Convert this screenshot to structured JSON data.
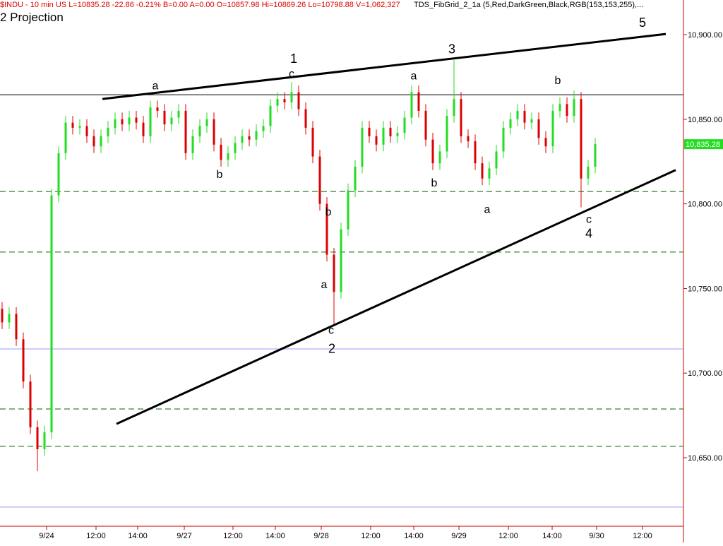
{
  "header": {
    "quote": "$INDU - 10 min  US  L=10835.28  -22.86  -0.21%  B=0.00  A=0.00  O=10857.98  Hi=10869.26  Lo=10798.88  V=1,062,327",
    "study": "TDS_FibGrid_2_1a (5,Red,DarkGreen,Black,RGB(153,153,255),..."
  },
  "chart_data": {
    "type": "candlestick",
    "title": "2 Projection",
    "up_color": "#22dd22",
    "down_color": "#dd0000",
    "axis_color": "#cc0000",
    "xlim": [
      -0.3,
      96.5
    ],
    "ylim": [
      10609.5,
      10920.5
    ],
    "xticks": [
      {
        "value": 6.3,
        "label": "9/24"
      },
      {
        "value": 13.3,
        "label": "12:00"
      },
      {
        "value": 19.2,
        "label": "14:00"
      },
      {
        "value": 25.8,
        "label": "9/27"
      },
      {
        "value": 32.7,
        "label": "12:00"
      },
      {
        "value": 38.7,
        "label": "14:00"
      },
      {
        "value": 45.2,
        "label": "9/28"
      },
      {
        "value": 52.2,
        "label": "12:00"
      },
      {
        "value": 58.3,
        "label": "14:00"
      },
      {
        "value": 64.7,
        "label": "9/29"
      },
      {
        "value": 71.7,
        "label": "12:00"
      },
      {
        "value": 77.9,
        "label": "14:00"
      },
      {
        "value": 84.2,
        "label": "9/30"
      },
      {
        "value": 90.7,
        "label": "12:00"
      }
    ],
    "yticks": [
      {
        "value": 10650,
        "label": "10,650.00"
      },
      {
        "value": 10700,
        "label": "10,700.00"
      },
      {
        "value": 10750,
        "label": "10,750.00"
      },
      {
        "value": 10800,
        "label": "10,800.00"
      },
      {
        "value": 10850,
        "label": "10,850.00"
      },
      {
        "value": 10900,
        "label": "10,900.00"
      }
    ],
    "last_price": {
      "value": 10835.28,
      "label": "10,835.28"
    },
    "open": [
      10738,
      10730,
      10735,
      10720,
      10695,
      10668,
      10655,
      10665,
      10805,
      10830,
      10848,
      10845,
      10846,
      10840,
      10834,
      10840,
      10845,
      10850,
      10847,
      10851,
      10848,
      10840,
      10857,
      10855,
      10847,
      10851,
      10855,
      10830,
      10840,
      10846,
      10850,
      10835,
      10826,
      10830,
      10836,
      10840,
      10838,
      10843,
      10846,
      10858,
      10862,
      10860,
      10866,
      10856,
      10845,
      10828,
      10800,
      10770,
      10748,
      10785,
      10808,
      10822,
      10845,
      10840,
      10835,
      10845,
      10840,
      10842,
      10851,
      10866,
      10855,
      10838,
      10824,
      10831,
      10852,
      10862,
      10840,
      10837,
      10824,
      10815,
      10821,
      10831,
      10845,
      10850,
      10855,
      10848,
      10850,
      10839,
      10834,
      10855,
      10859,
      10852,
      10862,
      10815,
      10822
    ],
    "high": [
      10742,
      10739,
      10739,
      10724,
      10699,
      10672,
      10669,
      10809,
      10834,
      10852,
      10852,
      10850,
      10850,
      10844,
      10844,
      10849,
      10854,
      10854,
      10855,
      10855,
      10852,
      10861,
      10861,
      10859,
      10855,
      10859,
      10859,
      10844,
      10850,
      10854,
      10854,
      10839,
      10834,
      10840,
      10844,
      10844,
      10847,
      10850,
      10862,
      10866,
      10866,
      10872,
      10870,
      10860,
      10849,
      10832,
      10804,
      10774,
      10789,
      10812,
      10826,
      10849,
      10849,
      10844,
      10849,
      10849,
      10846,
      10855,
      10870,
      10870,
      10859,
      10842,
      10835,
      10856,
      10885,
      10866,
      10844,
      10841,
      10828,
      10825,
      10835,
      10849,
      10854,
      10859,
      10859,
      10854,
      10854,
      10843,
      10859,
      10863,
      10863,
      10867,
      10866,
      10826,
      10839
    ],
    "low": [
      10726,
      10726,
      10716,
      10691,
      10664,
      10642,
      10651,
      10661,
      10801,
      10826,
      10841,
      10841,
      10836,
      10830,
      10830,
      10836,
      10841,
      10843,
      10843,
      10844,
      10836,
      10836,
      10851,
      10843,
      10843,
      10847,
      10826,
      10826,
      10836,
      10842,
      10831,
      10822,
      10822,
      10826,
      10832,
      10834,
      10834,
      10839,
      10842,
      10854,
      10856,
      10856,
      10852,
      10841,
      10824,
      10796,
      10766,
      10728,
      10744,
      10781,
      10804,
      10818,
      10836,
      10831,
      10831,
      10836,
      10836,
      10838,
      10847,
      10851,
      10834,
      10820,
      10820,
      10827,
      10848,
      10836,
      10833,
      10820,
      10811,
      10811,
      10817,
      10827,
      10841,
      10846,
      10844,
      10844,
      10835,
      10830,
      10830,
      10851,
      10848,
      10848,
      10798,
      10811,
      10818
    ],
    "close": [
      10730,
      10735,
      10720,
      10695,
      10668,
      10655,
      10665,
      10805,
      10830,
      10848,
      10845,
      10846,
      10840,
      10834,
      10840,
      10845,
      10850,
      10847,
      10851,
      10848,
      10840,
      10857,
      10855,
      10847,
      10851,
      10855,
      10830,
      10840,
      10846,
      10850,
      10835,
      10826,
      10830,
      10836,
      10840,
      10838,
      10843,
      10846,
      10858,
      10862,
      10860,
      10866,
      10856,
      10845,
      10828,
      10800,
      10770,
      10748,
      10785,
      10808,
      10822,
      10845,
      10840,
      10835,
      10845,
      10840,
      10842,
      10851,
      10866,
      10855,
      10838,
      10824,
      10831,
      10852,
      10862,
      10840,
      10837,
      10824,
      10815,
      10821,
      10831,
      10845,
      10850,
      10855,
      10848,
      10850,
      10839,
      10834,
      10855,
      10859,
      10852,
      10862,
      10815,
      10822,
      10835.28
    ],
    "hlines": [
      {
        "value": 10864.5,
        "color": "#000000",
        "style": "solid"
      },
      {
        "value": 10807.3,
        "color": "#006400",
        "style": "dashed"
      },
      {
        "value": 10771.5,
        "color": "#006400",
        "style": "dashed"
      },
      {
        "value": 10714.3,
        "color": "#9999ff",
        "style": "solid"
      },
      {
        "value": 10678.8,
        "color": "#006400",
        "style": "dashed"
      },
      {
        "value": 10656.7,
        "color": "#006400",
        "style": "dashed"
      },
      {
        "value": 10620.8,
        "color": "#9999ff",
        "style": "solid"
      }
    ],
    "trendlines": [
      {
        "x": [
          14.2,
          94
        ],
        "y": [
          10862,
          10900.4
        ]
      },
      {
        "x": [
          16.2,
          95.4
        ],
        "y": [
          10670,
          10820
        ]
      }
    ],
    "annotations": [
      {
        "text": "a",
        "x": 21.7,
        "y": 10869.5
      },
      {
        "text": "1",
        "x": 41.3,
        "y": 10885.4
      },
      {
        "text": "c",
        "x": 41,
        "y": 10876.6
      },
      {
        "text": "b",
        "x": 30.8,
        "y": 10817
      },
      {
        "text": "3",
        "x": 63.7,
        "y": 10891
      },
      {
        "text": "a",
        "x": 58.3,
        "y": 10875.4
      },
      {
        "text": "b",
        "x": 78.7,
        "y": 10872.5
      },
      {
        "text": "b",
        "x": 46.2,
        "y": 10795
      },
      {
        "text": "a",
        "x": 45.6,
        "y": 10752
      },
      {
        "text": "c",
        "x": 46.6,
        "y": 10725
      },
      {
        "text": "2",
        "x": 46.7,
        "y": 10714
      },
      {
        "text": "b",
        "x": 61.2,
        "y": 10812
      },
      {
        "text": "a",
        "x": 68.7,
        "y": 10796.5
      },
      {
        "text": "c",
        "x": 83.1,
        "y": 10790.6
      },
      {
        "text": "4",
        "x": 83.1,
        "y": 10782
      },
      {
        "text": "5",
        "x": 90.7,
        "y": 10906.7
      }
    ]
  }
}
